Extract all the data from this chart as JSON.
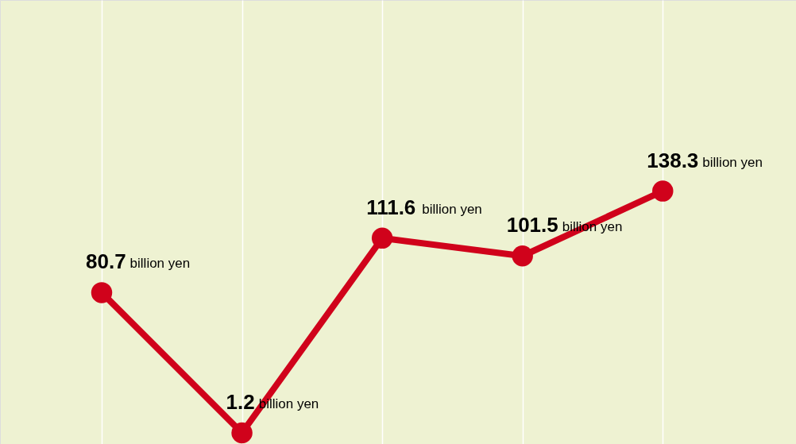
{
  "chart_data": {
    "type": "line",
    "categories": [
      null,
      null,
      null,
      null,
      null
    ],
    "series": [
      {
        "color": "#d0021b",
        "values": [
          80.7,
          1.2,
          111.6,
          101.5,
          138.3
        ]
      }
    ],
    "data_labels": true,
    "annotations": [
      "billion yen",
      "billion yen",
      "billion yen",
      "billion yen",
      "billion yen"
    ],
    "grid": "x",
    "marker": "circle",
    "tick_labels": false,
    "line_style": "solid"
  }
}
